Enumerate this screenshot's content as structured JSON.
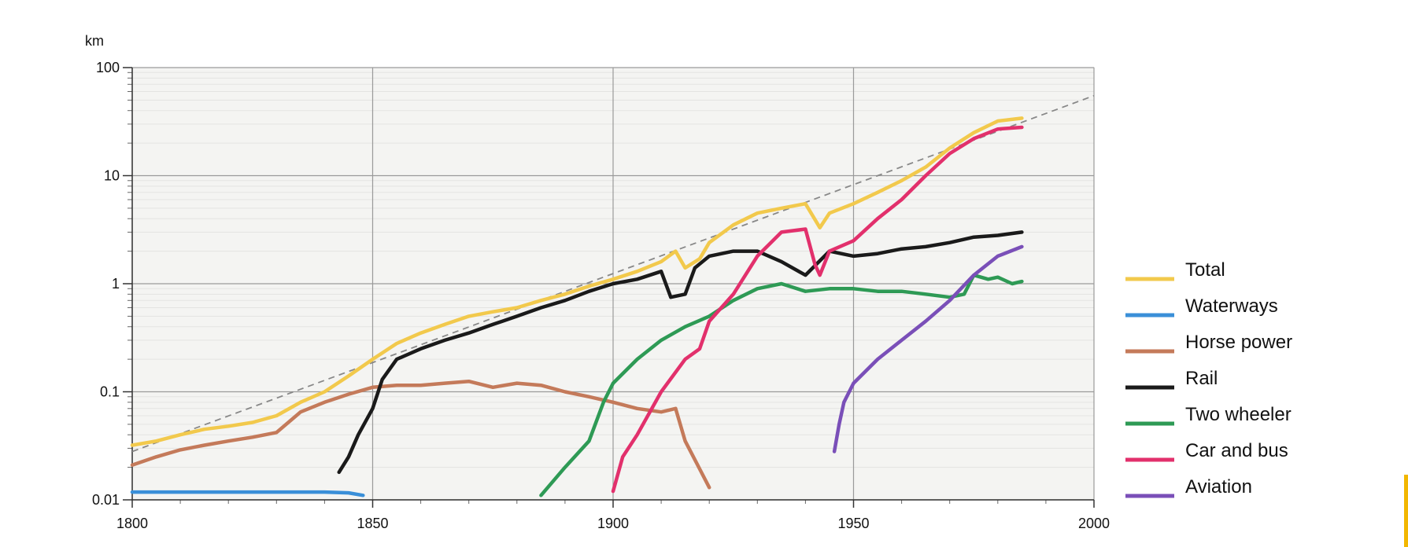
{
  "chart_data": {
    "type": "line",
    "title": "",
    "xlabel": "",
    "ylabel": "km",
    "y_scale": "log",
    "xlim": [
      1800,
      2000
    ],
    "ylim": [
      0.01,
      100
    ],
    "grid": true,
    "legend_position": "right",
    "x_ticks": [
      "1800",
      "1850",
      "1900",
      "1950",
      "2000"
    ],
    "y_ticks": [
      "0.01",
      "0.1",
      "1",
      "10",
      "100"
    ],
    "series": [
      {
        "name": "Total",
        "color": "#f2c94c",
        "x": [
          1800,
          1805,
          1810,
          1815,
          1820,
          1825,
          1830,
          1835,
          1840,
          1845,
          1850,
          1855,
          1860,
          1865,
          1870,
          1875,
          1880,
          1885,
          1890,
          1895,
          1900,
          1905,
          1910,
          1913,
          1915,
          1918,
          1920,
          1925,
          1930,
          1935,
          1940,
          1943,
          1945,
          1950,
          1955,
          1960,
          1965,
          1970,
          1975,
          1980,
          1985
        ],
        "y": [
          0.032,
          0.035,
          0.04,
          0.045,
          0.048,
          0.052,
          0.06,
          0.08,
          0.1,
          0.14,
          0.2,
          0.28,
          0.35,
          0.42,
          0.5,
          0.55,
          0.6,
          0.7,
          0.8,
          0.95,
          1.1,
          1.3,
          1.6,
          2.0,
          1.4,
          1.7,
          2.4,
          3.5,
          4.5,
          5.0,
          5.5,
          3.3,
          4.5,
          5.5,
          7.0,
          9.0,
          12,
          18,
          25,
          32,
          34
        ]
      },
      {
        "name": "Waterways",
        "color": "#3a8fd8",
        "x": [
          1800,
          1810,
          1820,
          1830,
          1840,
          1845,
          1848
        ],
        "y": [
          0.0118,
          0.0118,
          0.0118,
          0.0118,
          0.0118,
          0.0116,
          0.011
        ]
      },
      {
        "name": "Horse power",
        "color": "#c47a5a",
        "x": [
          1800,
          1805,
          1810,
          1815,
          1820,
          1825,
          1830,
          1835,
          1840,
          1845,
          1850,
          1855,
          1860,
          1865,
          1870,
          1875,
          1880,
          1885,
          1890,
          1895,
          1900,
          1905,
          1910,
          1913,
          1915,
          1920
        ],
        "y": [
          0.021,
          0.025,
          0.029,
          0.032,
          0.035,
          0.038,
          0.042,
          0.065,
          0.08,
          0.095,
          0.11,
          0.115,
          0.115,
          0.12,
          0.125,
          0.11,
          0.12,
          0.115,
          0.1,
          0.09,
          0.08,
          0.07,
          0.065,
          0.07,
          0.035,
          0.013
        ]
      },
      {
        "name": "Rail",
        "color": "#1a1a1a",
        "x": [
          1843,
          1845,
          1847,
          1850,
          1852,
          1855,
          1860,
          1865,
          1870,
          1875,
          1880,
          1885,
          1890,
          1895,
          1900,
          1905,
          1910,
          1912,
          1915,
          1917,
          1920,
          1925,
          1930,
          1935,
          1940,
          1945,
          1950,
          1955,
          1960,
          1965,
          1970,
          1975,
          1980,
          1985
        ],
        "y": [
          0.018,
          0.025,
          0.04,
          0.07,
          0.13,
          0.2,
          0.25,
          0.3,
          0.35,
          0.42,
          0.5,
          0.6,
          0.7,
          0.85,
          1.0,
          1.1,
          1.3,
          0.75,
          0.8,
          1.4,
          1.8,
          2.0,
          2.0,
          1.6,
          1.2,
          2.0,
          1.8,
          1.9,
          2.1,
          2.2,
          2.4,
          2.7,
          2.8,
          3.0
        ]
      },
      {
        "name": "Two wheeler",
        "color": "#2e9a55",
        "x": [
          1885,
          1890,
          1895,
          1898,
          1900,
          1905,
          1910,
          1915,
          1920,
          1925,
          1930,
          1935,
          1940,
          1945,
          1950,
          1955,
          1960,
          1965,
          1970,
          1973,
          1975,
          1978,
          1980,
          1983,
          1985
        ],
        "y": [
          0.011,
          0.02,
          0.035,
          0.08,
          0.12,
          0.2,
          0.3,
          0.4,
          0.5,
          0.7,
          0.9,
          1.0,
          0.85,
          0.9,
          0.9,
          0.85,
          0.85,
          0.8,
          0.75,
          0.8,
          1.2,
          1.1,
          1.15,
          1.0,
          1.05
        ]
      },
      {
        "name": "Car and bus",
        "color": "#e2306c",
        "x": [
          1900,
          1902,
          1905,
          1910,
          1915,
          1918,
          1920,
          1925,
          1930,
          1935,
          1940,
          1942,
          1943,
          1945,
          1950,
          1955,
          1960,
          1965,
          1970,
          1975,
          1980,
          1985
        ],
        "y": [
          0.012,
          0.025,
          0.04,
          0.1,
          0.2,
          0.25,
          0.45,
          0.8,
          1.8,
          3.0,
          3.2,
          1.5,
          1.2,
          2.0,
          2.5,
          4.0,
          6.0,
          10,
          16,
          22,
          27,
          28
        ]
      },
      {
        "name": "Aviation",
        "color": "#7a4fb8",
        "x": [
          1946,
          1947,
          1948,
          1950,
          1955,
          1960,
          1965,
          1970,
          1975,
          1980,
          1985
        ],
        "y": [
          0.028,
          0.05,
          0.08,
          0.12,
          0.2,
          0.3,
          0.45,
          0.7,
          1.2,
          1.8,
          2.2
        ]
      }
    ],
    "trend_line": {
      "style": "dashed",
      "color": "#888888",
      "x": [
        1800,
        2000
      ],
      "y": [
        0.028,
        55
      ]
    }
  }
}
